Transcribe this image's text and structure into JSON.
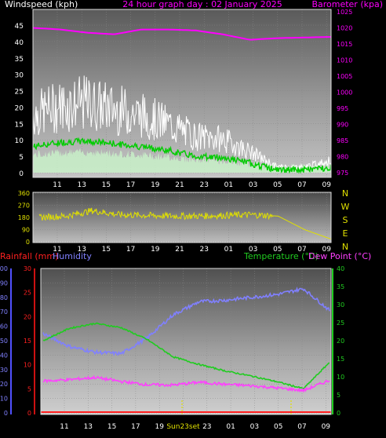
{
  "top_panel": {
    "title_left": "Windspeed (kph)",
    "title_center": "24 hour graph day : 02 January 2025",
    "title_right": "Barometer (kpa)",
    "left_ticks": [
      "45",
      "40",
      "35",
      "30",
      "25",
      "20",
      "15",
      "10",
      "5",
      "0"
    ],
    "right_ticks": [
      "1025",
      "1020",
      "1015",
      "1010",
      "1005",
      "1000",
      "995",
      "990",
      "985",
      "980",
      "975"
    ],
    "x_ticks": [
      "11",
      "13",
      "15",
      "17",
      "19",
      "21",
      "23",
      "01",
      "03",
      "05",
      "07",
      "09"
    ]
  },
  "mid_panel": {
    "left_ticks": [
      "360",
      "270",
      "180",
      "90",
      "0"
    ],
    "compass": [
      "N",
      "W",
      "S",
      "E",
      "N"
    ],
    "x_ticks": [
      "11",
      "13",
      "15",
      "17",
      "19",
      "21",
      "23",
      "01",
      "03",
      "05",
      "07",
      "09"
    ]
  },
  "bottom_panel": {
    "label_rainfall": "Rainfall (mm)",
    "label_humidity": "Humidity",
    "label_temperature": "Temperature (°C)",
    "label_dewpoint": "Dew Point (°C)",
    "humidity_ticks": [
      "100",
      "90",
      "80",
      "70",
      "60",
      "50",
      "40",
      "30",
      "20",
      "10",
      "0"
    ],
    "rain_ticks": [
      "30",
      "25",
      "20",
      "15",
      "10",
      "5",
      "0"
    ],
    "temp_ticks": [
      "40",
      "35",
      "30",
      "25",
      "20",
      "15",
      "10",
      "5",
      "0"
    ],
    "x_ticks": [
      "11",
      "13",
      "15",
      "17",
      "19",
      "Sun23set",
      "23",
      "01",
      "03",
      "05",
      "07",
      "09"
    ]
  },
  "colors": {
    "wind_gust": "#ffffff",
    "wind_avg_band": "#c8f0c8",
    "wind_avg_line": "#00cc00",
    "barometer": "#ff00ff",
    "direction": "#e0e000",
    "humidity": "#8080ff",
    "rainfall": "#ff2020",
    "temperature": "#20cc20",
    "dewpoint": "#ff40ff",
    "sun_marker": "#e0e000"
  },
  "chart_data": [
    {
      "type": "line",
      "title": "24 hour graph day : 02 January 2025",
      "x": [
        "11",
        "13",
        "15",
        "17",
        "19",
        "21",
        "23",
        "01",
        "03",
        "05",
        "07",
        "09"
      ],
      "series": [
        {
          "name": "Windspeed (kph)",
          "axis": "left",
          "values": [
            19,
            22,
            23,
            21,
            19,
            16,
            12,
            11,
            7,
            2,
            2,
            4
          ]
        },
        {
          "name": "Barometer (kpa)",
          "axis": "right",
          "values": [
            1020,
            1019.5,
            1018.5,
            1018,
            1019.5,
            1019.5,
            1019.2,
            1018,
            1016.3,
            1016.8,
            1017,
            1017.2
          ]
        }
      ],
      "ylim_left": [
        0,
        45
      ],
      "ylim_right": [
        975,
        1025
      ]
    },
    {
      "type": "line",
      "x": [
        "11",
        "13",
        "15",
        "17",
        "19",
        "21",
        "23",
        "01",
        "03",
        "05",
        "07",
        "09"
      ],
      "series": [
        {
          "name": "Wind direction",
          "values": [
            180,
            190,
            230,
            200,
            195,
            190,
            190,
            195,
            200,
            190,
            90,
            20
          ]
        }
      ],
      "ylim": [
        0,
        360
      ],
      "compass_labels": [
        "N",
        "W",
        "S",
        "E",
        "N"
      ]
    },
    {
      "type": "line",
      "x": [
        "11",
        "13",
        "15",
        "17",
        "19",
        "21",
        "23",
        "01",
        "03",
        "05",
        "07",
        "09"
      ],
      "series": [
        {
          "name": "Humidity",
          "axis": "humidity",
          "values": [
            55,
            46,
            42,
            41,
            52,
            68,
            77,
            78,
            80,
            82,
            86,
            71
          ]
        },
        {
          "name": "Rainfall (mm)",
          "axis": "rain",
          "values": [
            0,
            0,
            0,
            0,
            0,
            0,
            0,
            0,
            0,
            0,
            0,
            0
          ]
        },
        {
          "name": "Temperature (°C)",
          "axis": "temperature",
          "values": [
            20,
            23.4,
            24.8,
            23.6,
            20.3,
            15.5,
            13.4,
            11.6,
            10.2,
            8.6,
            6.7,
            14
          ]
        },
        {
          "name": "Dew Point (°C)",
          "axis": "temperature",
          "values": [
            8.8,
            9.2,
            9.8,
            8.7,
            7.8,
            7.7,
            8.5,
            7.9,
            7.5,
            6.9,
            6.2,
            9
          ]
        }
      ],
      "ylim_humidity": [
        0,
        100
      ],
      "ylim_rain": [
        0,
        30
      ],
      "ylim_temperature": [
        0,
        40
      ]
    }
  ]
}
